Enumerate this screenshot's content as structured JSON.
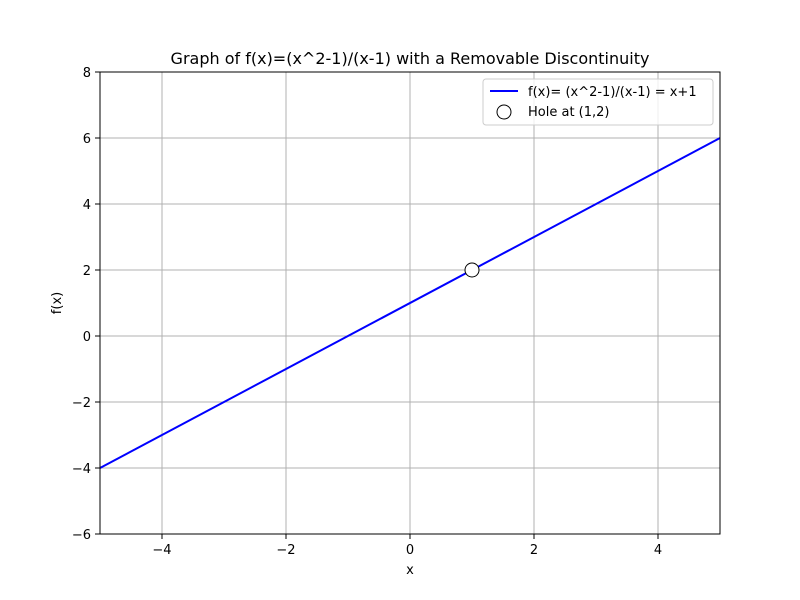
{
  "chart_data": {
    "type": "line",
    "title": "Graph of f(x)=(x^2-1)/(x-1) with a Removable Discontinuity",
    "xlabel": "x",
    "ylabel": "f(x)",
    "xlim": [
      -5,
      5
    ],
    "ylim": [
      -6,
      8
    ],
    "xticks": [
      -4,
      -2,
      0,
      2,
      4
    ],
    "yticks": [
      -6,
      -4,
      -2,
      0,
      2,
      4,
      6,
      8
    ],
    "xtick_labels": [
      "−4",
      "−2",
      "0",
      "2",
      "4"
    ],
    "ytick_labels": [
      "−6",
      "−4",
      "−2",
      "0",
      "2",
      "4",
      "6",
      "8"
    ],
    "grid": true,
    "legend_position": "top-right",
    "series": [
      {
        "name": "f(x)= (x^2-1)/(x-1) = x+1",
        "type": "line",
        "color": "#0000ff",
        "x": [
          -5,
          5
        ],
        "y": [
          -4,
          6
        ]
      },
      {
        "name": "Hole at (1,2)",
        "type": "scatter",
        "marker": "open-circle",
        "color": "#000000",
        "x": [
          1
        ],
        "y": [
          2
        ]
      }
    ]
  }
}
